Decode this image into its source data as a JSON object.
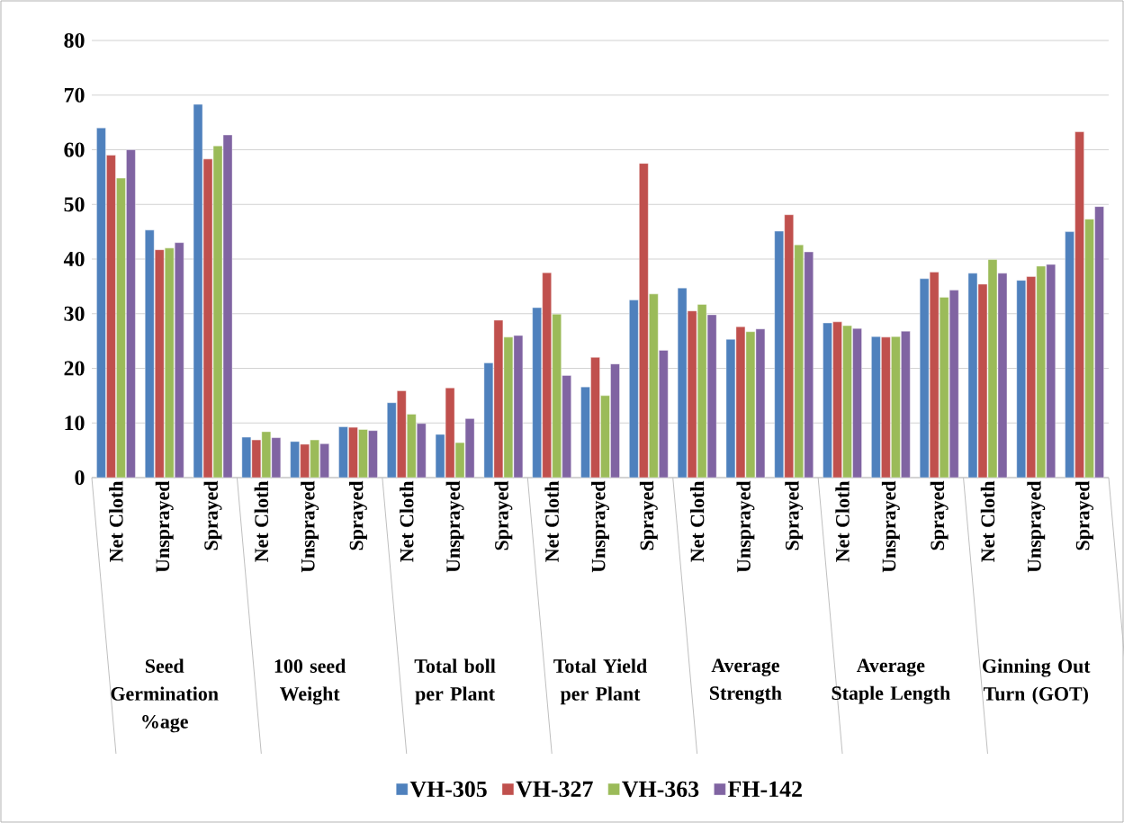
{
  "chart_data": {
    "type": "bar",
    "categories": [
      "Net Cloth",
      "Unsprayed",
      "Sprayed",
      "Net Cloth",
      "Unsprayed",
      "Sprayed",
      "Net Cloth",
      "Unsprayed",
      "Sprayed",
      "Net Cloth",
      "Unsprayed",
      "Sprayed",
      "Net Cloth",
      "Unsprayed",
      "Sprayed",
      "Net Cloth",
      "Unsprayed",
      "Sprayed",
      "Net Cloth",
      "Unsprayed",
      "Sprayed"
    ],
    "annotations": [
      "Seed Germination %age",
      "100 seed Weight",
      "Total boll per Plant",
      "Total Yield per Plant",
      "Average Strength",
      "Average Staple Length",
      "Ginning Out Turn (GOT)"
    ],
    "series": [
      {
        "name": "VH-305",
        "color": "#4f81bd",
        "values": [
          64,
          45.3,
          68.3,
          7.4,
          6.6,
          9.3,
          13.7,
          7.9,
          21,
          31.1,
          16.6,
          32.5,
          34.7,
          25.3,
          45.1,
          28.3,
          25.8,
          36.4,
          37.4,
          36.1,
          45
        ]
      },
      {
        "name": "VH-327",
        "color": "#c0504d",
        "values": [
          59,
          41.7,
          58.3,
          6.9,
          6.1,
          9.2,
          15.9,
          16.4,
          28.8,
          37.5,
          22,
          57.5,
          30.5,
          27.6,
          48.1,
          28.5,
          25.7,
          37.6,
          35.4,
          36.8,
          63.3
        ]
      },
      {
        "name": "VH-363",
        "color": "#9bbb59",
        "values": [
          54.8,
          42,
          60.7,
          8.4,
          6.9,
          8.8,
          11.6,
          6.4,
          25.7,
          29.9,
          15,
          33.6,
          31.7,
          26.7,
          42.6,
          27.8,
          25.8,
          33,
          39.9,
          38.7,
          47.3
        ]
      },
      {
        "name": "FH-142",
        "color": "#8064a2",
        "values": [
          60,
          43,
          62.7,
          7.3,
          6.2,
          8.6,
          9.9,
          10.8,
          26,
          18.7,
          20.8,
          23.3,
          29.8,
          27.2,
          41.3,
          27.3,
          26.8,
          34.3,
          37.4,
          39,
          49.6
        ]
      }
    ],
    "ylim": [
      0,
      80
    ],
    "yticks": [
      0,
      10,
      20,
      30,
      40,
      50,
      60,
      70,
      80
    ],
    "grid": "y",
    "legend": "bottom"
  }
}
